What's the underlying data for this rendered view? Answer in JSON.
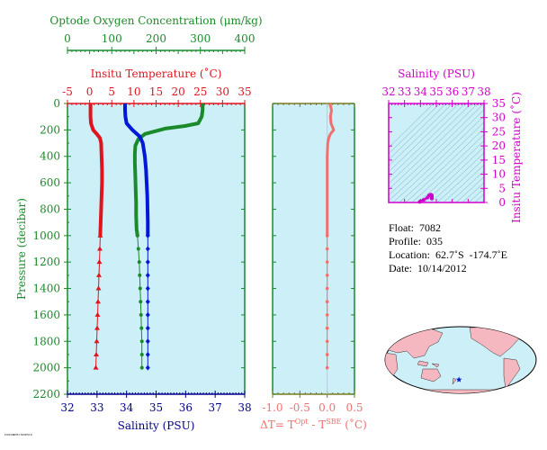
{
  "panel_main": {
    "oxygen_axis": {
      "title": "Optode Oxygen Concentration (μm/kg)",
      "ticks": [
        "0",
        "100",
        "200",
        "300",
        "400"
      ],
      "color": "#1a8a2a"
    },
    "temp_axis": {
      "title": "Insitu Temperature (˚C)",
      "ticks": [
        "-5",
        "0",
        "5",
        "10",
        "15",
        "20",
        "25",
        "30",
        "35"
      ],
      "color": "#e0141e"
    },
    "salinity_axis": {
      "title": "Salinity (PSU)",
      "ticks": [
        "32",
        "33",
        "34",
        "35",
        "36",
        "37",
        "38"
      ],
      "color": "#00008b"
    },
    "pressure_axis": {
      "title": "Pressure (decibar)",
      "ticks": [
        "0",
        "200",
        "400",
        "600",
        "800",
        "1000",
        "1200",
        "1400",
        "1600",
        "1800",
        "2000",
        "2200"
      ],
      "color": "#1a8a2a"
    }
  },
  "panel_dt": {
    "xlabel": "ΔT= T",
    "xlabel_sup1": "Opt",
    "xlabel_mid": " - T",
    "xlabel_sup2": "SBE",
    "xlabel_end": " (˚C)",
    "ticks": [
      "-1.0",
      "-0.5",
      "0.0",
      "0.5"
    ],
    "color": "#f07070"
  },
  "panel_ts": {
    "salinity_title": "Salinity (PSU)",
    "salinity_ticks": [
      "32",
      "33",
      "34",
      "35",
      "36",
      "37",
      "38"
    ],
    "temp_title": "Insitu Temperature (˚C)",
    "temp_ticks": [
      "0",
      "5",
      "10",
      "15",
      "20",
      "25",
      "30",
      "35"
    ],
    "color": "#d000c8"
  },
  "info": {
    "float": "Float:  7082",
    "profile": "Profile:  035",
    "location": "Location:  62.7˚S  -174.7˚E",
    "date": "Date:  10/14/2012"
  },
  "colors": {
    "bg": "#cdeff8",
    "temp": "#e0141e",
    "salinity": "#0018d8",
    "oxygen": "#1a8a2a",
    "dt": "#f07070",
    "ts": "#d000c8"
  },
  "chart_data": [
    {
      "type": "line",
      "xlabel": "Insitu Temperature (˚C)",
      "ylabel": "Pressure (decibar)",
      "xlim": [
        -5,
        35
      ],
      "ylim": [
        2200,
        0
      ],
      "series": [
        {
          "values": [
            [
              0.2,
              0
            ],
            [
              0.2,
              50
            ],
            [
              0.2,
              100
            ],
            [
              0.3,
              150
            ],
            [
              0.8,
              200
            ],
            [
              1.6,
              230
            ],
            [
              2.3,
              260
            ],
            [
              2.6,
              300
            ],
            [
              2.7,
              400
            ],
            [
              2.8,
              500
            ],
            [
              2.8,
              600
            ],
            [
              2.7,
              700
            ],
            [
              2.6,
              800
            ],
            [
              2.5,
              900
            ],
            [
              2.4,
              1000
            ],
            [
              2.3,
              1100
            ],
            [
              2.2,
              1200
            ],
            [
              2.1,
              1300
            ],
            [
              2.0,
              1400
            ],
            [
              1.9,
              1500
            ],
            [
              1.8,
              1600
            ],
            [
              1.7,
              1700
            ],
            [
              1.6,
              1800
            ],
            [
              1.5,
              1900
            ],
            [
              1.4,
              2000
            ]
          ]
        }
      ]
    },
    {
      "type": "line",
      "xlabel": "Salinity (PSU)",
      "ylabel": "Pressure (decibar)",
      "xlim": [
        32,
        38
      ],
      "ylim": [
        2200,
        0
      ],
      "series": [
        {
          "values": [
            [
              33.95,
              0
            ],
            [
              33.95,
              50
            ],
            [
              33.96,
              100
            ],
            [
              34.0,
              150
            ],
            [
              34.2,
              200
            ],
            [
              34.45,
              250
            ],
            [
              34.55,
              300
            ],
            [
              34.62,
              400
            ],
            [
              34.66,
              500
            ],
            [
              34.68,
              600
            ],
            [
              34.7,
              700
            ],
            [
              34.71,
              800
            ],
            [
              34.72,
              900
            ],
            [
              34.72,
              1000
            ],
            [
              34.72,
              1100
            ],
            [
              34.72,
              1200
            ],
            [
              34.72,
              1300
            ],
            [
              34.72,
              1400
            ],
            [
              34.72,
              1500
            ],
            [
              34.72,
              1600
            ],
            [
              34.72,
              1700
            ],
            [
              34.72,
              1800
            ],
            [
              34.72,
              1900
            ],
            [
              34.72,
              2000
            ]
          ]
        }
      ]
    },
    {
      "type": "line",
      "xlabel": "Optode Oxygen Concentration (μm/kg)",
      "ylabel": "Pressure (decibar)",
      "xlim": [
        0,
        400
      ],
      "ylim": [
        2200,
        0
      ],
      "series": [
        {
          "values": [
            [
              305,
              0
            ],
            [
              305,
              50
            ],
            [
              303,
              100
            ],
            [
              295,
              150
            ],
            [
              265,
              170
            ],
            [
              220,
              190
            ],
            [
              175,
              230
            ],
            [
              160,
              270
            ],
            [
              153,
              320
            ],
            [
              152,
              380
            ],
            [
              152,
              450
            ],
            [
              153,
              550
            ],
            [
              154,
              650
            ],
            [
              155,
              750
            ],
            [
              155,
              850
            ],
            [
              156,
              950
            ],
            [
              158,
              1000
            ],
            [
              160,
              1100
            ],
            [
              162,
              1200
            ],
            [
              163,
              1300
            ],
            [
              164,
              1400
            ],
            [
              165,
              1500
            ],
            [
              166,
              1600
            ],
            [
              167,
              1700
            ],
            [
              168,
              1800
            ],
            [
              168,
              1900
            ],
            [
              168,
              2000
            ]
          ]
        }
      ]
    },
    {
      "type": "line",
      "xlabel": "ΔT= TOpt - TSBE (˚C)",
      "ylabel": "Pressure (decibar)",
      "xlim": [
        -1.0,
        0.5
      ],
      "ylim": [
        2200,
        0
      ],
      "series": [
        {
          "values": [
            [
              0.05,
              0
            ],
            [
              0.08,
              50
            ],
            [
              0.06,
              100
            ],
            [
              0.07,
              150
            ],
            [
              0.12,
              200
            ],
            [
              0.06,
              230
            ],
            [
              0.03,
              260
            ],
            [
              0.01,
              300
            ],
            [
              0.0,
              400
            ],
            [
              0.0,
              500
            ],
            [
              0.0,
              600
            ],
            [
              0.0,
              700
            ],
            [
              0.0,
              800
            ],
            [
              0.0,
              900
            ],
            [
              0.0,
              1000
            ],
            [
              0.0,
              1100
            ],
            [
              0.0,
              1200
            ],
            [
              0.0,
              1300
            ],
            [
              0.0,
              1400
            ],
            [
              0.0,
              1500
            ],
            [
              0.0,
              1600
            ],
            [
              0.0,
              1700
            ],
            [
              0.0,
              1800
            ],
            [
              0.0,
              1900
            ],
            [
              0.0,
              2000
            ]
          ]
        }
      ]
    },
    {
      "type": "scatter",
      "xlabel": "Salinity (PSU)",
      "ylabel": "Insitu Temperature (˚C)",
      "xlim": [
        32,
        38
      ],
      "ylim": [
        0,
        35
      ],
      "series": [
        {
          "values": [
            [
              33.95,
              0.2
            ],
            [
              34.0,
              0.4
            ],
            [
              34.2,
              0.9
            ],
            [
              34.45,
              1.8
            ],
            [
              34.55,
              2.5
            ],
            [
              34.65,
              2.8
            ],
            [
              34.7,
              2.6
            ],
            [
              34.72,
              2.4
            ],
            [
              34.72,
              2.0
            ],
            [
              34.72,
              1.6
            ],
            [
              34.71,
              1.4
            ]
          ]
        }
      ]
    }
  ]
}
